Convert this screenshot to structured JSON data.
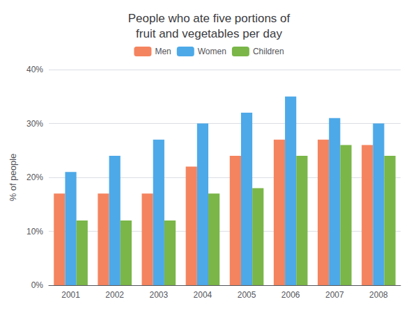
{
  "chart_data": {
    "type": "bar",
    "title": "People who ate five portions of\nfruit and vegetables per day",
    "ylabel": "% of people",
    "categories": [
      "2001",
      "2002",
      "2003",
      "2004",
      "2005",
      "2006",
      "2007",
      "2008"
    ],
    "series": [
      {
        "name": "Men",
        "color": "#f4845f",
        "values": [
          17,
          17,
          17,
          22,
          24,
          27,
          27,
          26
        ]
      },
      {
        "name": "Women",
        "color": "#4da9e8",
        "values": [
          21,
          24,
          27,
          30,
          32,
          35,
          31,
          30
        ]
      },
      {
        "name": "Children",
        "color": "#7ab648",
        "values": [
          12,
          12,
          12,
          17,
          18,
          24,
          26,
          24
        ]
      }
    ],
    "ylim": [
      0,
      40
    ],
    "yticks": [
      {
        "value": 0,
        "label": "0%"
      },
      {
        "value": 10,
        "label": "10%"
      },
      {
        "value": 20,
        "label": "20%"
      },
      {
        "value": 30,
        "label": "30%"
      },
      {
        "value": 40,
        "label": "40%"
      }
    ],
    "grid": true,
    "legend": "top"
  }
}
